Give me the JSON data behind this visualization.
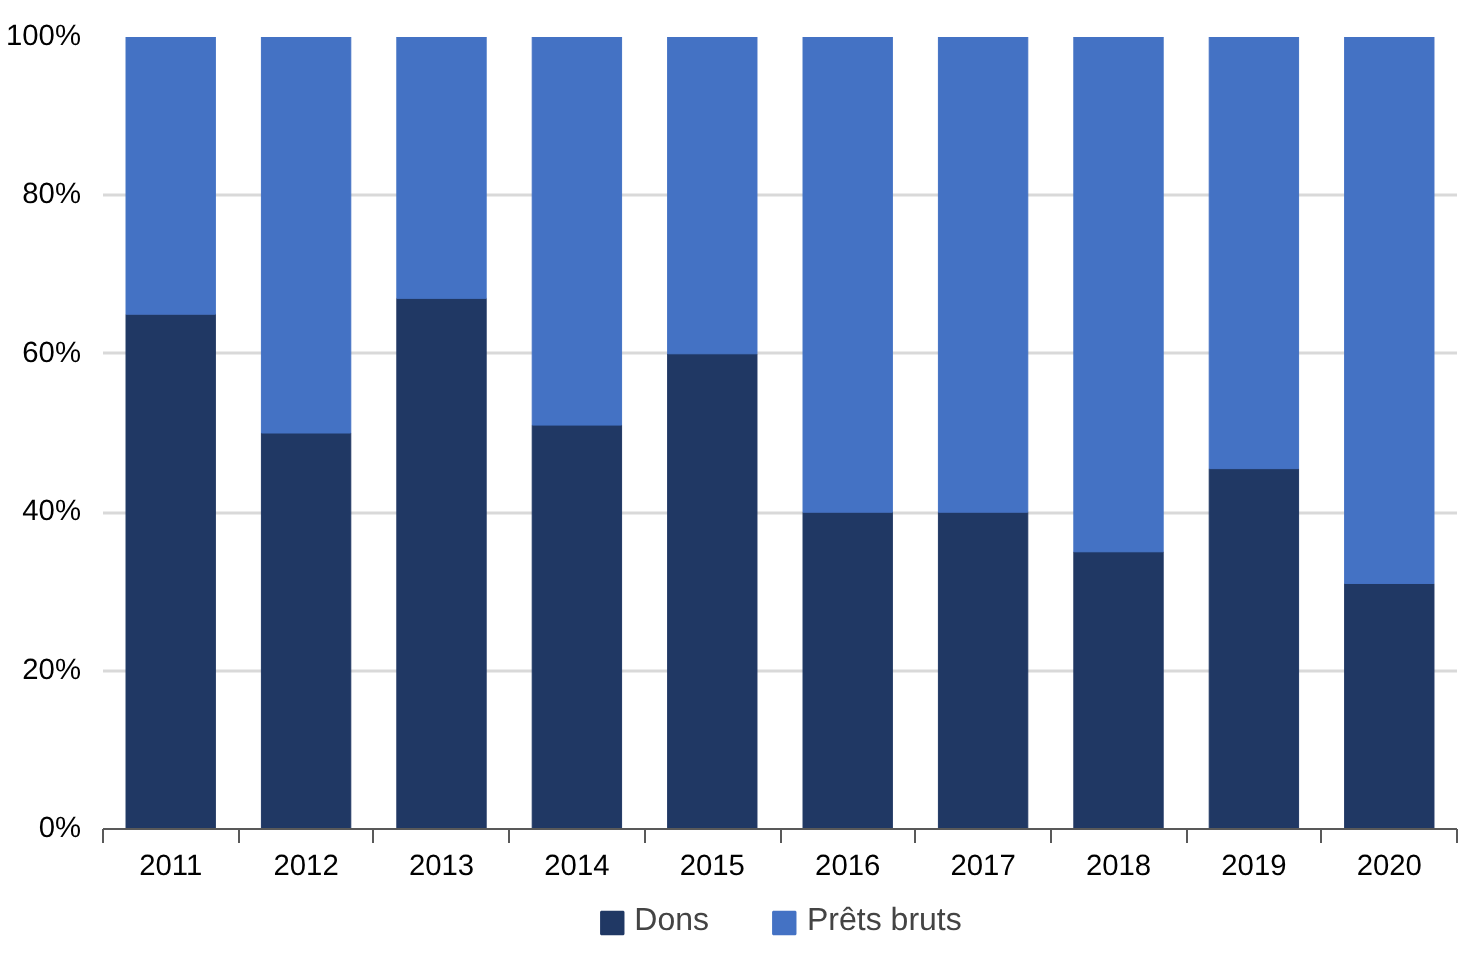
{
  "chart_data": {
    "type": "bar",
    "stacked": true,
    "categories": [
      "2011",
      "2012",
      "2013",
      "2014",
      "2015",
      "2016",
      "2017",
      "2018",
      "2019",
      "2020"
    ],
    "series": [
      {
        "name": "Dons",
        "color": "#203864",
        "values": [
          65,
          50,
          67,
          51,
          60,
          40,
          40,
          35,
          45.5,
          31
        ]
      },
      {
        "name": "Prêts bruts",
        "color": "#4472c4",
        "values": [
          35,
          50,
          33,
          49,
          40,
          60,
          60,
          65,
          54.5,
          69
        ]
      }
    ],
    "ylim": [
      0,
      100
    ],
    "yticks": [
      {
        "value": 0,
        "label": "0%"
      },
      {
        "value": 20,
        "label": "20%"
      },
      {
        "value": 40,
        "label": "40%"
      },
      {
        "value": 60,
        "label": "60%"
      },
      {
        "value": 80,
        "label": "80%"
      },
      {
        "value": 100,
        "label": "100%"
      }
    ],
    "grid": "y",
    "legend": "bottom"
  }
}
